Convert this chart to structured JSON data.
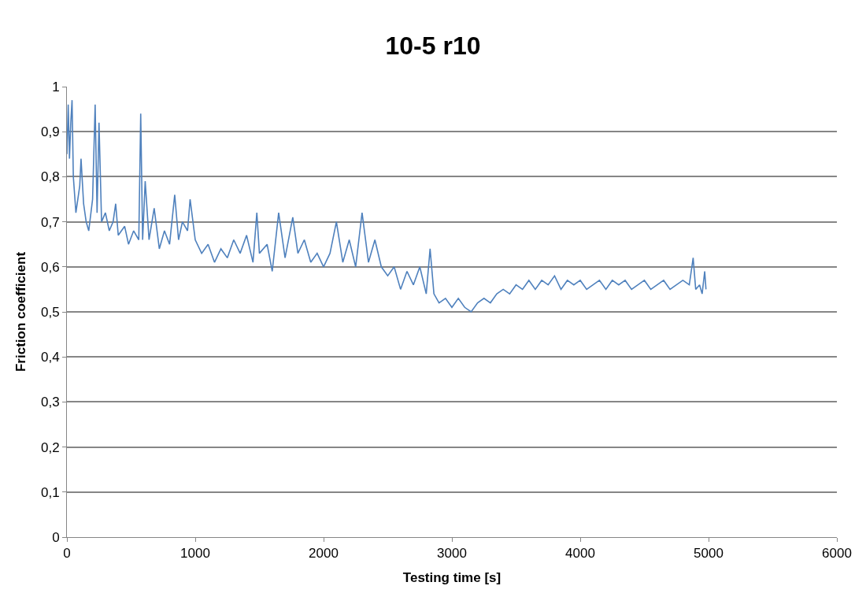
{
  "chart_data": {
    "type": "line",
    "title": "10-5 r10",
    "xlabel": "Testing time [s]",
    "ylabel": "Friction coefficient",
    "xlim": [
      0,
      6000
    ],
    "xticks": [
      0,
      1000,
      2000,
      3000,
      4000,
      5000,
      6000
    ],
    "ylim": [
      0,
      1
    ],
    "yticks": [
      0,
      {
        "value": 0.1,
        "label": "0,1"
      },
      {
        "value": 0.2,
        "label": "0,2"
      },
      {
        "value": 0.3,
        "label": "0,3"
      },
      {
        "value": 0.4,
        "label": "0,4"
      },
      {
        "value": 0.5,
        "label": "0,5"
      },
      {
        "value": 0.6,
        "label": "0,6"
      },
      {
        "value": 0.7,
        "label": "0,7"
      },
      {
        "value": 0.8,
        "label": "0,8"
      },
      {
        "value": 0.9,
        "label": "0,9"
      },
      1
    ],
    "grid": "y",
    "marker": "none",
    "line_style": "solid",
    "series": [
      {
        "color": "#4f81bd",
        "x": [
          0,
          10,
          20,
          30,
          40,
          50,
          70,
          100,
          110,
          130,
          150,
          170,
          200,
          220,
          235,
          250,
          270,
          300,
          330,
          360,
          380,
          400,
          450,
          480,
          520,
          560,
          575,
          590,
          610,
          640,
          680,
          720,
          760,
          800,
          840,
          870,
          900,
          940,
          960,
          1000,
          1050,
          1100,
          1150,
          1200,
          1250,
          1300,
          1350,
          1400,
          1450,
          1480,
          1500,
          1560,
          1600,
          1650,
          1700,
          1760,
          1800,
          1850,
          1900,
          1950,
          2000,
          2050,
          2100,
          2150,
          2200,
          2250,
          2300,
          2350,
          2400,
          2450,
          2500,
          2550,
          2600,
          2650,
          2700,
          2750,
          2800,
          2830,
          2860,
          2900,
          2950,
          3000,
          3050,
          3100,
          3150,
          3200,
          3250,
          3300,
          3350,
          3400,
          3450,
          3500,
          3550,
          3600,
          3650,
          3700,
          3750,
          3800,
          3850,
          3900,
          3950,
          4000,
          4050,
          4100,
          4150,
          4200,
          4250,
          4300,
          4350,
          4400,
          4450,
          4500,
          4550,
          4600,
          4650,
          4700,
          4750,
          4800,
          4850,
          4880,
          4900,
          4930,
          4950,
          4970,
          4980
        ],
        "values": [
          0.85,
          0.96,
          0.84,
          0.92,
          0.97,
          0.8,
          0.72,
          0.78,
          0.84,
          0.74,
          0.7,
          0.68,
          0.75,
          0.96,
          0.72,
          0.92,
          0.7,
          0.72,
          0.68,
          0.7,
          0.74,
          0.67,
          0.69,
          0.65,
          0.68,
          0.66,
          0.94,
          0.66,
          0.79,
          0.66,
          0.73,
          0.64,
          0.68,
          0.65,
          0.76,
          0.66,
          0.7,
          0.68,
          0.75,
          0.66,
          0.63,
          0.65,
          0.61,
          0.64,
          0.62,
          0.66,
          0.63,
          0.67,
          0.61,
          0.72,
          0.63,
          0.65,
          0.59,
          0.72,
          0.62,
          0.71,
          0.63,
          0.66,
          0.61,
          0.63,
          0.6,
          0.63,
          0.7,
          0.61,
          0.66,
          0.6,
          0.72,
          0.61,
          0.66,
          0.6,
          0.58,
          0.6,
          0.55,
          0.59,
          0.56,
          0.6,
          0.54,
          0.64,
          0.54,
          0.52,
          0.53,
          0.51,
          0.53,
          0.51,
          0.5,
          0.52,
          0.53,
          0.52,
          0.54,
          0.55,
          0.54,
          0.56,
          0.55,
          0.57,
          0.55,
          0.57,
          0.56,
          0.58,
          0.55,
          0.57,
          0.56,
          0.57,
          0.55,
          0.56,
          0.57,
          0.55,
          0.57,
          0.56,
          0.57,
          0.55,
          0.56,
          0.57,
          0.55,
          0.56,
          0.57,
          0.55,
          0.56,
          0.57,
          0.56,
          0.62,
          0.55,
          0.56,
          0.54,
          0.59,
          0.55
        ]
      }
    ]
  }
}
